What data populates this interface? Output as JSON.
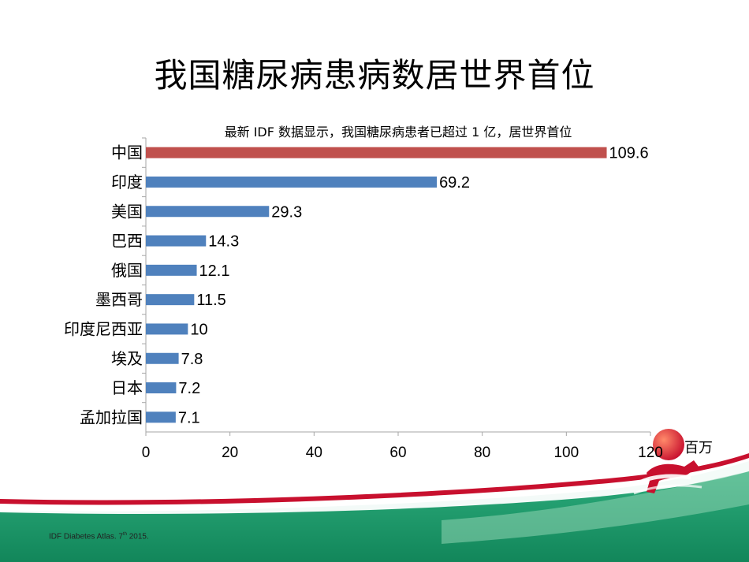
{
  "slide": {
    "title": "我国糖尿病患病数居世界首位"
  },
  "chart_data": {
    "type": "bar",
    "orientation": "horizontal",
    "subtitle": "最新 IDF 数据显示，我国糖尿病患者已超过 1 亿，居世界首位",
    "categories": [
      "中国",
      "印度",
      "美国",
      "巴西",
      "俄国",
      "墨西哥",
      "印度尼西亚",
      "埃及",
      "日本",
      "孟加拉国"
    ],
    "values": [
      109.6,
      69.2,
      29.3,
      14.3,
      12.1,
      11.5,
      10,
      7.8,
      7.2,
      7.1
    ],
    "value_labels": [
      "109.6",
      "69.2",
      "29.3",
      "14.3",
      "12.1",
      "11.5",
      "10",
      "7.8",
      "7.2",
      "7.1"
    ],
    "xlim": [
      0,
      120
    ],
    "xticks": [
      0,
      20,
      40,
      60,
      80,
      100,
      120
    ],
    "unit_label": "百万",
    "grid": false,
    "colors": {
      "highlight": "#c0504d",
      "default": "#4f81bd",
      "axis": "#a6a6a6"
    },
    "highlight_index": 0
  },
  "footer": {
    "source_main": "IDF Diabetes Atlas. 7",
    "source_sup": "th",
    "source_tail": " 2015.",
    "band_colors": {
      "green": "#1f9a6b",
      "red": "#c8102e"
    },
    "mascot_icon": "running-figure-logo"
  }
}
